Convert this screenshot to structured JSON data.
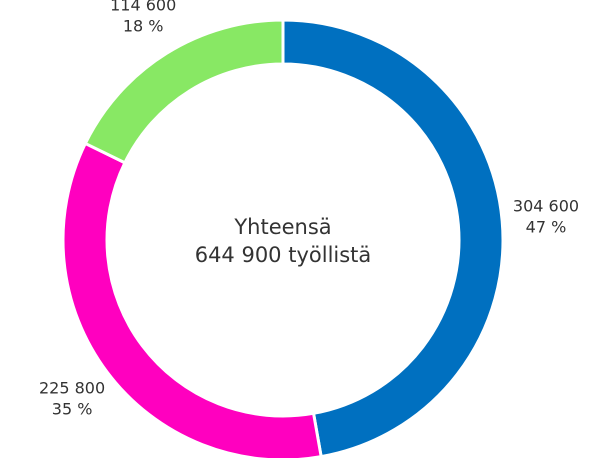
{
  "chart_data": {
    "type": "donut",
    "values": [
      304600,
      225800,
      114600
    ],
    "value_labels": [
      "304 600",
      "225 800",
      "114 600"
    ],
    "percentages": [
      47,
      35,
      18
    ],
    "percentage_labels": [
      "47 %",
      "35 %",
      "18 %"
    ],
    "colors": [
      "#0070c0",
      "#ff00bf",
      "#88e864"
    ],
    "center_text": [
      "Yhteensä",
      "644 900 työllistä"
    ]
  }
}
